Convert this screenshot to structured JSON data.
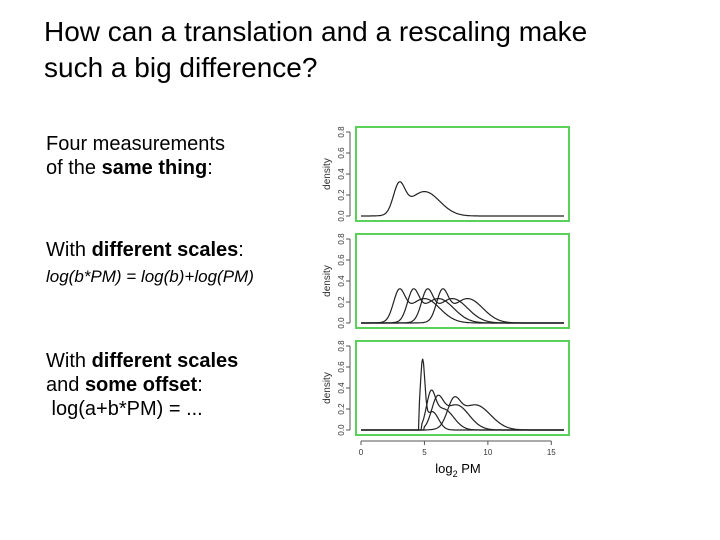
{
  "slide": {
    "title_line1": "How can a translation and a rescaling make",
    "title_line2": "such a big difference?",
    "block1": {
      "line1": "Four measurements",
      "line2_pre": "of the ",
      "line2_bold": "same thing",
      "line2_post": ":"
    },
    "block2": {
      "pre": "With ",
      "bold": "different scales",
      "post": ":",
      "formula": "log(b*PM) = log(b)+log(PM)"
    },
    "block3": {
      "line1_pre": "With ",
      "line1_bold": "different scales",
      "line2_pre": "and ",
      "line2_bold": "some offset",
      "line2_post": ":",
      "formula": " log(a+b*PM) = ..."
    }
  },
  "colors": {
    "panel_border": "#5bd05b",
    "curve": "#222222",
    "axis": "#555555"
  },
  "chart_data": [
    {
      "type": "line",
      "title": "",
      "ylabel": "density",
      "xlim": [
        0,
        16
      ],
      "ylim": [
        0,
        0.8
      ],
      "yticks": [
        "0.0",
        "0.2",
        "0.4",
        "0.6",
        "0.8"
      ],
      "series": [
        {
          "components": [
            {
              "mu": 3.0,
              "sigma": 0.45,
              "weight": 0.3
            },
            {
              "mu": 5.0,
              "sigma": 1.2,
              "weight": 0.7
            }
          ],
          "tail_right": 0.2
        }
      ]
    },
    {
      "type": "line",
      "title": "",
      "ylabel": "density",
      "xlim": [
        0,
        16
      ],
      "ylim": [
        0,
        0.8
      ],
      "yticks": [
        "0.0",
        "0.2",
        "0.4",
        "0.6",
        "0.8"
      ],
      "series": [
        {
          "components": [
            {
              "mu": 3.0,
              "sigma": 0.45,
              "weight": 0.3
            },
            {
              "mu": 5.0,
              "sigma": 1.2,
              "weight": 0.7
            }
          ]
        },
        {
          "components": [
            {
              "mu": 4.1,
              "sigma": 0.45,
              "weight": 0.3
            },
            {
              "mu": 6.1,
              "sigma": 1.2,
              "weight": 0.7
            }
          ]
        },
        {
          "components": [
            {
              "mu": 5.2,
              "sigma": 0.45,
              "weight": 0.3
            },
            {
              "mu": 7.2,
              "sigma": 1.2,
              "weight": 0.7
            }
          ]
        },
        {
          "components": [
            {
              "mu": 6.4,
              "sigma": 0.45,
              "weight": 0.3
            },
            {
              "mu": 8.4,
              "sigma": 1.2,
              "weight": 0.7
            }
          ]
        }
      ]
    },
    {
      "type": "line",
      "title": "",
      "ylabel": "density",
      "xlabel": "log",
      "xlabel_sub": "2",
      "xlabel_post": " PM",
      "xlim": [
        0,
        16
      ],
      "ylim": [
        0,
        0.8
      ],
      "yticks": [
        "0.0",
        "0.2",
        "0.4",
        "0.6",
        "0.8"
      ],
      "xticks": [
        {
          "value": 0,
          "label": "0"
        },
        {
          "value": 5,
          "label": "5"
        },
        {
          "value": 10,
          "label": "10"
        },
        {
          "value": 15,
          "label": "15"
        }
      ],
      "series": [
        {
          "start": 4.6,
          "components": [
            {
              "mu": 4.85,
              "sigma": 0.18,
              "weight": 0.28
            },
            {
              "mu": 5.6,
              "sigma": 0.5,
              "weight": 0.22
            }
          ]
        },
        {
          "start": 4.8,
          "components": [
            {
              "mu": 5.5,
              "sigma": 0.35,
              "weight": 0.25
            },
            {
              "mu": 6.5,
              "sigma": 0.8,
              "weight": 0.4
            }
          ]
        },
        {
          "start": 5.0,
          "components": [
            {
              "mu": 6.0,
              "sigma": 0.45,
              "weight": 0.28
            },
            {
              "mu": 7.5,
              "sigma": 1.0,
              "weight": 0.6
            }
          ]
        },
        {
          "start": 5.2,
          "components": [
            {
              "mu": 7.3,
              "sigma": 0.5,
              "weight": 0.28
            },
            {
              "mu": 9.0,
              "sigma": 1.2,
              "weight": 0.72
            }
          ]
        }
      ]
    }
  ]
}
